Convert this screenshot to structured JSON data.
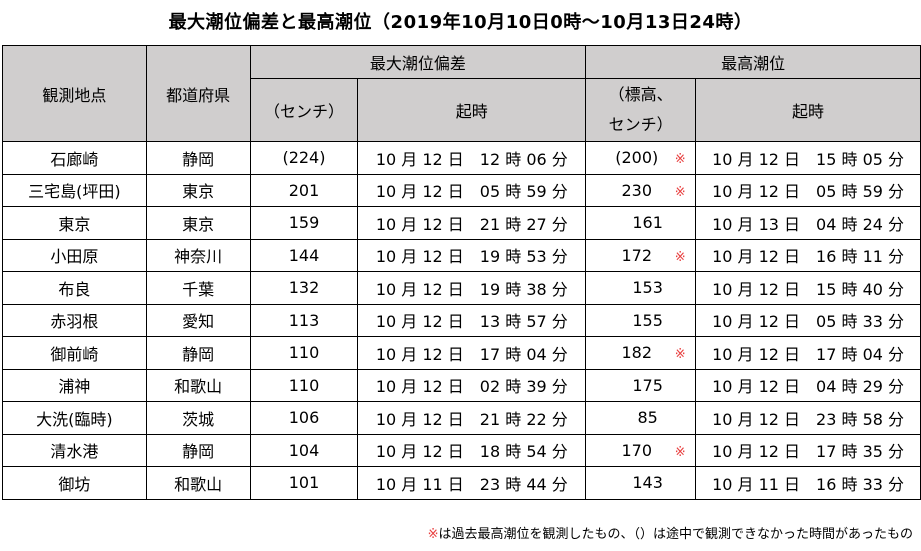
{
  "title": "最大潮位偏差と最高潮位（2019年10月10日0時～10月13日24時）",
  "headers": {
    "station": "観測地点",
    "prefecture": "都道府県",
    "max_deviation": "最大潮位偏差",
    "max_level": "最高潮位",
    "deviation_unit": "（センチ）",
    "level_unit_line1": "（標高、",
    "level_unit_line2": "センチ）",
    "time": "起時"
  },
  "rows": [
    {
      "station": "石廊崎",
      "pref": "静岡",
      "dev": "(224)",
      "dev_time": "10 月 12 日　12 時 06 分",
      "level": "(200)",
      "mark": "※",
      "level_time": "10 月 12 日　15 時 05 分"
    },
    {
      "station": "三宅島(坪田)",
      "pref": "東京",
      "dev": "201",
      "dev_time": "10 月 12 日　05 時 59 分",
      "level": "230",
      "mark": "※",
      "level_time": "10 月 12 日　05 時 59 分"
    },
    {
      "station": "東京",
      "pref": "東京",
      "dev": "159",
      "dev_time": "10 月 12 日　21 時 27 分",
      "level": "161",
      "mark": "",
      "level_time": "10 月 13 日　04 時 24 分"
    },
    {
      "station": "小田原",
      "pref": "神奈川",
      "dev": "144",
      "dev_time": "10 月 12 日　19 時 53 分",
      "level": "172",
      "mark": "※",
      "level_time": "10 月 12 日　16 時 11 分"
    },
    {
      "station": "布良",
      "pref": "千葉",
      "dev": "132",
      "dev_time": "10 月 12 日　19 時 38 分",
      "level": "153",
      "mark": "",
      "level_time": "10 月 12 日　15 時 40 分"
    },
    {
      "station": "赤羽根",
      "pref": "愛知",
      "dev": "113",
      "dev_time": "10 月 12 日　13 時 57 分",
      "level": "155",
      "mark": "",
      "level_time": "10 月 12 日　05 時 33 分"
    },
    {
      "station": "御前崎",
      "pref": "静岡",
      "dev": "110",
      "dev_time": "10 月 12 日　17 時 04 分",
      "level": "182",
      "mark": "※",
      "level_time": "10 月 12 日　17 時 04 分"
    },
    {
      "station": "浦神",
      "pref": "和歌山",
      "dev": "110",
      "dev_time": "10 月 12 日　02 時 39 分",
      "level": "175",
      "mark": "",
      "level_time": "10 月 12 日　04 時 29 分"
    },
    {
      "station": "大洗(臨時)",
      "pref": "茨城",
      "dev": "106",
      "dev_time": "10 月 12 日　21 時 22 分",
      "level": "85",
      "mark": "",
      "level_time": "10 月 12 日　23 時 58 分"
    },
    {
      "station": "清水港",
      "pref": "静岡",
      "dev": "104",
      "dev_time": "10 月 12 日　18 時 54 分",
      "level": "170",
      "mark": "※",
      "level_time": "10 月 12 日　17 時 35 分"
    },
    {
      "station": "御坊",
      "pref": "和歌山",
      "dev": "101",
      "dev_time": "10 月 11 日　23 時 44 分",
      "level": "143",
      "mark": "",
      "level_time": "10 月 11 日　16 時 33 分"
    }
  ],
  "footnote": {
    "mark": "※",
    "text": "は過去最高潮位を観測したもの、（）は途中で観測できなかった時間があったもの"
  },
  "colors": {
    "header_bg": "#d0cece",
    "mark": "#e84040"
  }
}
